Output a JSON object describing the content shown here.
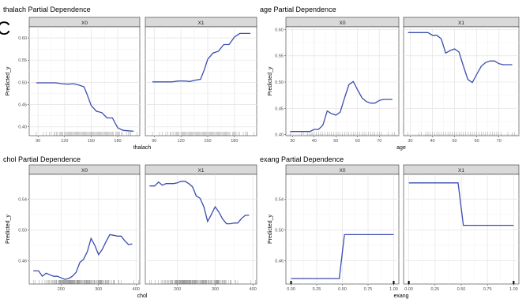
{
  "figure": {
    "panel_tag": "C",
    "y_axis_label": "Predicted_y"
  },
  "chart_data": [
    {
      "type": "line",
      "title": "thalach Partial Dependence",
      "xlabel": "thalach",
      "ylabel": "Predicted_y",
      "xlim": [
        80,
        205
      ],
      "ylim": [
        0.38,
        0.625
      ],
      "xticks": [
        90,
        120,
        150,
        180
      ],
      "yticks": [
        0.4,
        0.45,
        0.5,
        0.55,
        0.6
      ],
      "ytick_labels": [
        "0.40",
        "0.45",
        "0.50",
        "0.55",
        "0.60"
      ],
      "grid": true,
      "facets": [
        {
          "label": "X0",
          "x": [
            88,
            100,
            110,
            117,
            124,
            130,
            136,
            142,
            146,
            150,
            156,
            162,
            168,
            174,
            180,
            186,
            192,
            198
          ],
          "y": [
            0.499,
            0.499,
            0.499,
            0.497,
            0.496,
            0.497,
            0.494,
            0.49,
            0.47,
            0.448,
            0.435,
            0.432,
            0.42,
            0.42,
            0.398,
            0.392,
            0.391,
            0.39
          ]
        },
        {
          "label": "X1",
          "x": [
            88,
            100,
            110,
            117,
            124,
            130,
            136,
            142,
            146,
            150,
            156,
            162,
            168,
            174,
            180,
            186,
            192,
            198
          ],
          "y": [
            0.501,
            0.501,
            0.501,
            0.503,
            0.503,
            0.502,
            0.505,
            0.507,
            0.527,
            0.552,
            0.566,
            0.57,
            0.585,
            0.585,
            0.602,
            0.61,
            0.61,
            0.61
          ]
        }
      ]
    },
    {
      "type": "line",
      "title": "age Partial Dependence",
      "xlabel": "age",
      "ylabel": "Predicted_y",
      "xlim": [
        27,
        79
      ],
      "ylim": [
        0.398,
        0.605
      ],
      "xticks": [
        30,
        40,
        50,
        60,
        70
      ],
      "yticks": [
        0.4,
        0.45,
        0.5,
        0.55,
        0.6
      ],
      "ytick_labels": [
        "0.40",
        "0.45",
        "0.50",
        "0.55",
        "0.60"
      ],
      "grid": true,
      "facets": [
        {
          "label": "X0",
          "x": [
            29,
            34,
            38,
            40,
            42,
            44,
            46,
            48,
            50,
            52,
            54,
            56,
            58,
            60,
            62,
            64,
            66,
            68,
            70,
            72,
            74,
            76
          ],
          "y": [
            0.406,
            0.406,
            0.406,
            0.41,
            0.41,
            0.418,
            0.445,
            0.44,
            0.437,
            0.443,
            0.47,
            0.495,
            0.501,
            0.485,
            0.47,
            0.463,
            0.46,
            0.46,
            0.465,
            0.467,
            0.467,
            0.467
          ]
        },
        {
          "label": "X1",
          "x": [
            29,
            34,
            38,
            40,
            42,
            44,
            46,
            48,
            50,
            52,
            54,
            56,
            58,
            60,
            62,
            64,
            66,
            68,
            70,
            72,
            74,
            76
          ],
          "y": [
            0.594,
            0.594,
            0.594,
            0.589,
            0.589,
            0.582,
            0.555,
            0.56,
            0.563,
            0.557,
            0.53,
            0.505,
            0.499,
            0.515,
            0.53,
            0.537,
            0.54,
            0.54,
            0.535,
            0.533,
            0.533,
            0.533
          ]
        }
      ]
    },
    {
      "type": "line",
      "title": "chol Partial Dependence",
      "xlabel": "chol",
      "ylabel": "Predicted_y",
      "xlim": [
        115,
        410
      ],
      "ylim": [
        0.43,
        0.572
      ],
      "xticks": [
        200,
        300,
        400
      ],
      "yticks": [
        0.46,
        0.5,
        0.54
      ],
      "ytick_labels": [
        "0.46",
        "0.50",
        "0.54"
      ],
      "grid": true,
      "facets": [
        {
          "label": "X0",
          "x": [
            126,
            140,
            150,
            160,
            170,
            180,
            190,
            200,
            210,
            220,
            230,
            240,
            250,
            260,
            270,
            280,
            290,
            300,
            310,
            320,
            330,
            340,
            350,
            360,
            370,
            380,
            390
          ],
          "y": [
            0.447,
            0.447,
            0.44,
            0.444,
            0.442,
            0.44,
            0.44,
            0.438,
            0.436,
            0.437,
            0.44,
            0.445,
            0.458,
            0.462,
            0.472,
            0.489,
            0.48,
            0.468,
            0.475,
            0.485,
            0.494,
            0.493,
            0.492,
            0.492,
            0.486,
            0.481,
            0.482
          ]
        },
        {
          "label": "X1",
          "x": [
            126,
            140,
            150,
            160,
            170,
            180,
            190,
            200,
            210,
            220,
            230,
            240,
            250,
            260,
            270,
            280,
            290,
            300,
            310,
            320,
            330,
            340,
            350,
            360,
            370,
            380,
            390
          ],
          "y": [
            0.557,
            0.557,
            0.562,
            0.558,
            0.56,
            0.56,
            0.56,
            0.561,
            0.563,
            0.563,
            0.56,
            0.556,
            0.544,
            0.541,
            0.53,
            0.511,
            0.52,
            0.53,
            0.523,
            0.514,
            0.508,
            0.508,
            0.509,
            0.509,
            0.515,
            0.519,
            0.519
          ]
        }
      ]
    },
    {
      "type": "line",
      "title": "exang Partial Dependence",
      "xlabel": "exang",
      "ylabel": "Predicted_y",
      "xlim": [
        -0.05,
        1.05
      ],
      "ylim": [
        0.43,
        0.572
      ],
      "xticks": [
        0.0,
        0.25,
        0.5,
        0.75,
        1.0
      ],
      "xtick_labels": [
        "0.00",
        "0.25",
        "0.50",
        "0.75",
        "1.00"
      ],
      "yticks": [
        0.46,
        0.5,
        0.54
      ],
      "ytick_labels": [
        "0.46",
        "0.50",
        "0.54"
      ],
      "grid": true,
      "facets": [
        {
          "label": "X0",
          "x": [
            0.0,
            0.25,
            0.47,
            0.52,
            0.75,
            1.0
          ],
          "y": [
            0.437,
            0.437,
            0.437,
            0.494,
            0.494,
            0.494
          ]
        },
        {
          "label": "X1",
          "x": [
            0.0,
            0.25,
            0.47,
            0.52,
            0.75,
            1.0
          ],
          "y": [
            0.561,
            0.561,
            0.561,
            0.506,
            0.506,
            0.506
          ]
        }
      ]
    }
  ]
}
